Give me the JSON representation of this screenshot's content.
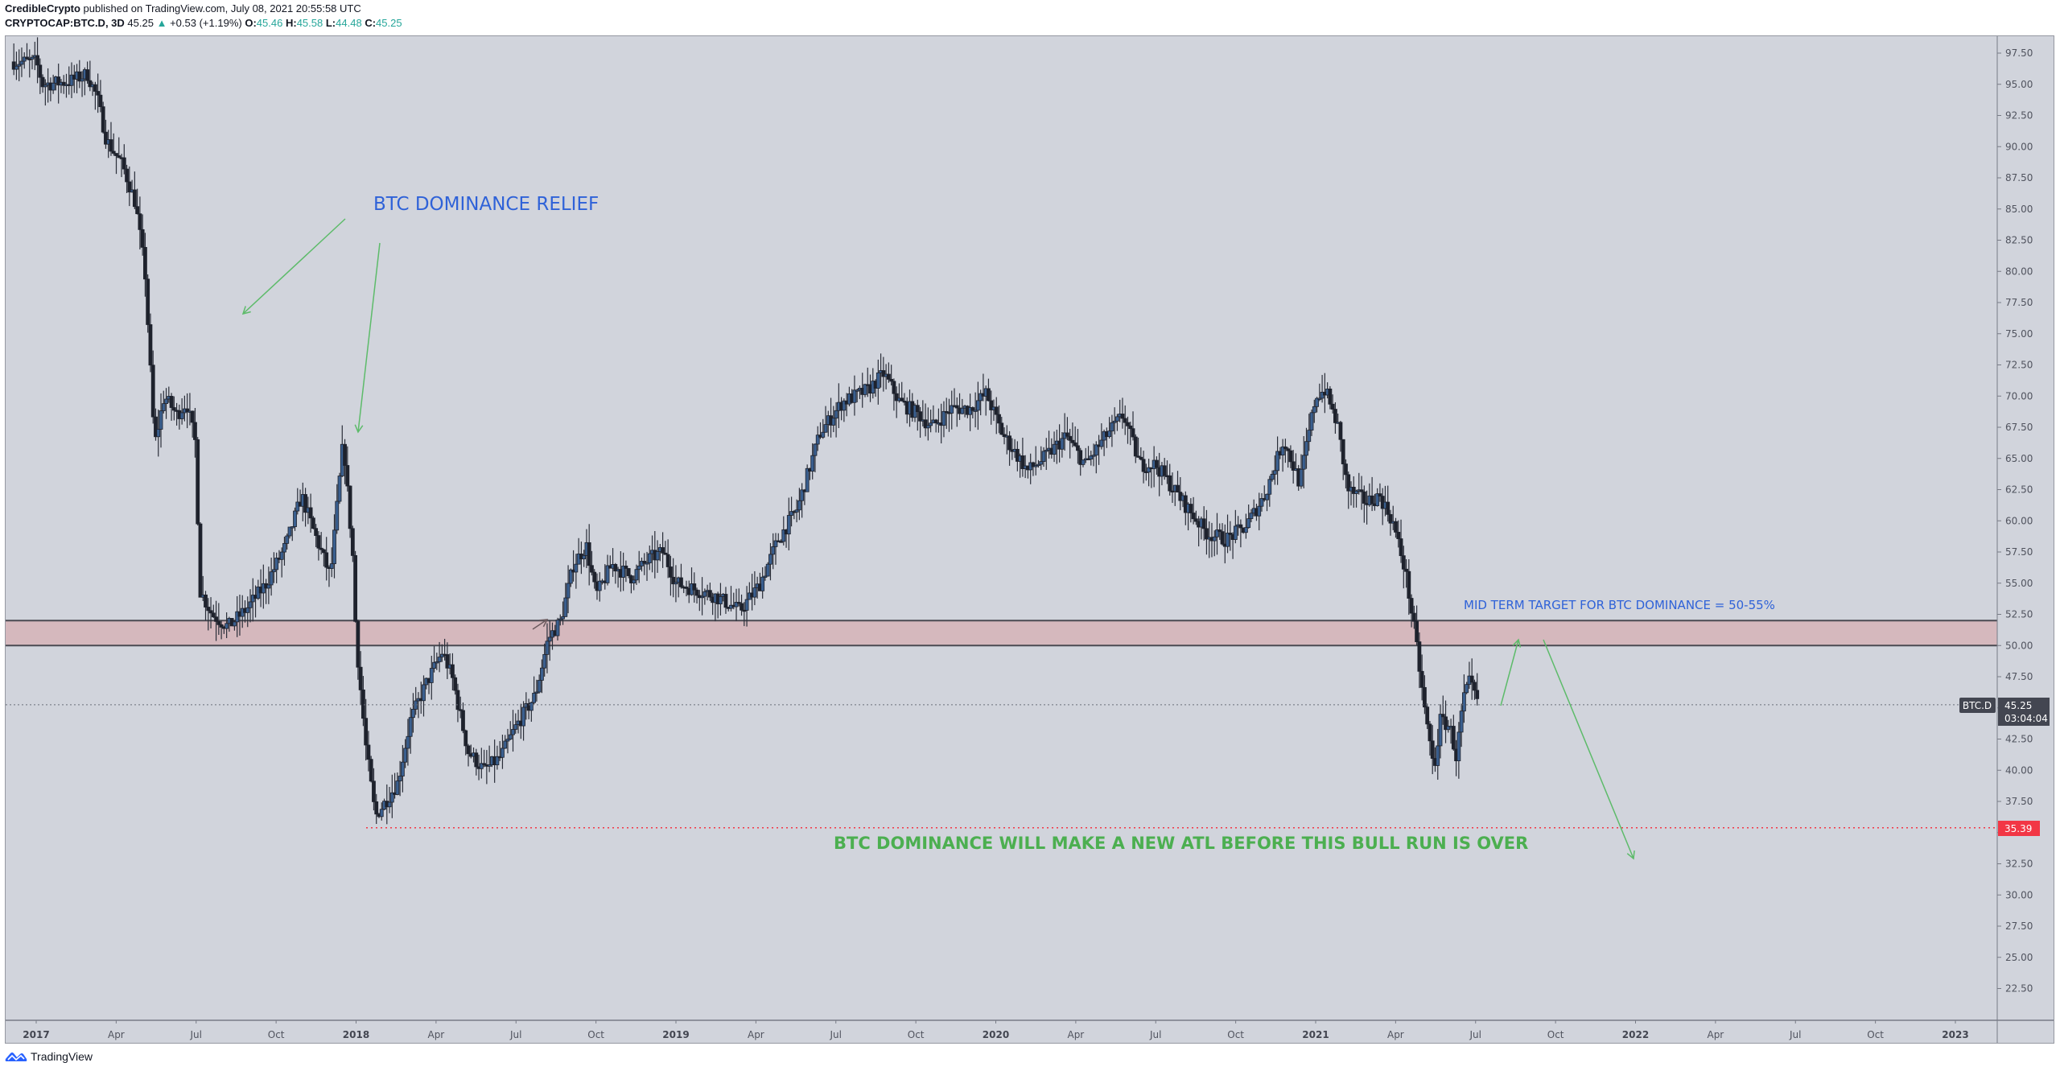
{
  "header": {
    "author": "CredibleCrypto",
    "published_text": "published on TradingView.com, July 08, 2021 20:55:58 UTC",
    "symbol": "CRYPTOCAP:BTC.D, 3D",
    "last": "45.25",
    "change": "+0.53 (+1.19%)",
    "ohlc": {
      "o_label": "O:",
      "o": "45.46",
      "h_label": "H:",
      "h": "45.58",
      "l_label": "L:",
      "l": "44.48",
      "c_label": "C:",
      "c": "45.25"
    }
  },
  "footer": {
    "brand": "TradingView"
  },
  "colors": {
    "background": "#d1d4dc",
    "candle_up": "#3a5f8f",
    "candle_down": "#1e222d",
    "zone_fill": "#d5b8bd",
    "annotation_blue": "#2f62d8",
    "annotation_green": "#4caf50",
    "atl_line": "#f23645"
  },
  "price_label": {
    "symbol_tag": "BTC.D",
    "price": "45.25",
    "countdown": "03:04:04"
  },
  "atl_label": {
    "price": "35.39"
  },
  "annotations": {
    "relief": "BTC DOMINANCE RELIEF",
    "mid_term": "MID TERM TARGET FOR BTC DOMINANCE = 50-55%",
    "atl": "BTC DOMINANCE WILL MAKE A NEW ATL BEFORE THIS BULL RUN IS OVER"
  },
  "chart_data": {
    "type": "candlestick",
    "title": "CRYPTOCAP:BTC.D, 3D",
    "xlabel": "",
    "ylabel": "",
    "ylim": [
      20.0,
      98.5
    ],
    "grid": false,
    "y_ticks": [
      "97.50",
      "95.00",
      "92.50",
      "90.00",
      "87.50",
      "85.00",
      "82.50",
      "80.00",
      "77.50",
      "75.00",
      "72.50",
      "70.00",
      "67.50",
      "65.00",
      "62.50",
      "60.00",
      "57.50",
      "55.00",
      "52.50",
      "50.00",
      "47.50",
      "45.00",
      "42.50",
      "40.00",
      "37.50",
      "35.00",
      "32.50",
      "30.00",
      "27.50",
      "25.00",
      "22.50"
    ],
    "x_ticks": [
      {
        "label": "2017",
        "year": true,
        "t": 2017.0
      },
      {
        "label": "Apr",
        "year": false,
        "t": 2017.25
      },
      {
        "label": "Jul",
        "year": false,
        "t": 2017.5
      },
      {
        "label": "Oct",
        "year": false,
        "t": 2017.75
      },
      {
        "label": "2018",
        "year": true,
        "t": 2018.0
      },
      {
        "label": "Apr",
        "year": false,
        "t": 2018.25
      },
      {
        "label": "Jul",
        "year": false,
        "t": 2018.5
      },
      {
        "label": "Oct",
        "year": false,
        "t": 2018.75
      },
      {
        "label": "2019",
        "year": true,
        "t": 2019.0
      },
      {
        "label": "Apr",
        "year": false,
        "t": 2019.25
      },
      {
        "label": "Jul",
        "year": false,
        "t": 2019.5
      },
      {
        "label": "Oct",
        "year": false,
        "t": 2019.75
      },
      {
        "label": "2020",
        "year": true,
        "t": 2020.0
      },
      {
        "label": "Apr",
        "year": false,
        "t": 2020.25
      },
      {
        "label": "Jul",
        "year": false,
        "t": 2020.5
      },
      {
        "label": "Oct",
        "year": false,
        "t": 2020.75
      },
      {
        "label": "2021",
        "year": true,
        "t": 2021.0
      },
      {
        "label": "Apr",
        "year": false,
        "t": 2021.25
      },
      {
        "label": "Jul",
        "year": false,
        "t": 2021.5
      },
      {
        "label": "Oct",
        "year": false,
        "t": 2021.75
      },
      {
        "label": "2022",
        "year": true,
        "t": 2022.0
      },
      {
        "label": "Apr",
        "year": false,
        "t": 2022.25
      },
      {
        "label": "Jul",
        "year": false,
        "t": 2022.5
      },
      {
        "label": "Oct",
        "year": false,
        "t": 2022.75
      },
      {
        "label": "2023",
        "year": true,
        "t": 2023.0
      }
    ],
    "close_keyframes": [
      [
        2016.93,
        96.8
      ],
      [
        2017.0,
        96.8
      ],
      [
        2017.02,
        95.0
      ],
      [
        2017.1,
        95.2
      ],
      [
        2017.16,
        95.8
      ],
      [
        2017.19,
        94.0
      ],
      [
        2017.22,
        90.5
      ],
      [
        2017.27,
        88.5
      ],
      [
        2017.31,
        85.5
      ],
      [
        2017.34,
        80.0
      ],
      [
        2017.37,
        66.0
      ],
      [
        2017.4,
        70.0
      ],
      [
        2017.44,
        68.5
      ],
      [
        2017.47,
        69.5
      ],
      [
        2017.5,
        66.0
      ],
      [
        2017.51,
        54.5
      ],
      [
        2017.55,
        52.5
      ],
      [
        2017.6,
        51.5
      ],
      [
        2017.66,
        53.0
      ],
      [
        2017.72,
        55.0
      ],
      [
        2017.78,
        58.0
      ],
      [
        2017.83,
        62.0
      ],
      [
        2017.87,
        59.0
      ],
      [
        2017.92,
        55.5
      ],
      [
        2017.96,
        66.5
      ],
      [
        2017.99,
        57.0
      ],
      [
        2018.0,
        50.5
      ],
      [
        2018.03,
        42.0
      ],
      [
        2018.06,
        36.3
      ],
      [
        2018.1,
        37.8
      ],
      [
        2018.13,
        39.0
      ],
      [
        2018.17,
        44.0
      ],
      [
        2018.22,
        47.0
      ],
      [
        2018.27,
        49.5
      ],
      [
        2018.3,
        47.5
      ],
      [
        2018.35,
        41.5
      ],
      [
        2018.4,
        40.0
      ],
      [
        2018.45,
        41.0
      ],
      [
        2018.5,
        43.5
      ],
      [
        2018.56,
        46.0
      ],
      [
        2018.6,
        50.5
      ],
      [
        2018.64,
        52.0
      ],
      [
        2018.68,
        56.5
      ],
      [
        2018.72,
        58.0
      ],
      [
        2018.75,
        54.0
      ],
      [
        2018.8,
        56.5
      ],
      [
        2018.86,
        55.5
      ],
      [
        2018.92,
        57.0
      ],
      [
        2018.96,
        57.5
      ],
      [
        2019.0,
        55.0
      ],
      [
        2019.06,
        54.5
      ],
      [
        2019.12,
        54.0
      ],
      [
        2019.2,
        52.8
      ],
      [
        2019.26,
        54.8
      ],
      [
        2019.32,
        58.5
      ],
      [
        2019.38,
        61.0
      ],
      [
        2019.45,
        67.0
      ],
      [
        2019.52,
        69.5
      ],
      [
        2019.6,
        70.5
      ],
      [
        2019.65,
        71.8
      ],
      [
        2019.7,
        69.5
      ],
      [
        2019.76,
        68.5
      ],
      [
        2019.8,
        67.5
      ],
      [
        2019.86,
        69.0
      ],
      [
        2019.92,
        69.0
      ],
      [
        2019.97,
        70.2
      ],
      [
        2020.02,
        67.0
      ],
      [
        2020.1,
        64.0
      ],
      [
        2020.15,
        65.0
      ],
      [
        2020.22,
        66.8
      ],
      [
        2020.28,
        64.5
      ],
      [
        2020.35,
        67.0
      ],
      [
        2020.4,
        68.5
      ],
      [
        2020.45,
        64.5
      ],
      [
        2020.5,
        64.5
      ],
      [
        2020.6,
        61.0
      ],
      [
        2020.66,
        59.0
      ],
      [
        2020.72,
        58.5
      ],
      [
        2020.78,
        59.5
      ],
      [
        2020.84,
        62.0
      ],
      [
        2020.9,
        66.5
      ],
      [
        2020.95,
        63.0
      ],
      [
        2021.0,
        70.0
      ],
      [
        2021.03,
        70.5
      ],
      [
        2021.07,
        67.5
      ],
      [
        2021.1,
        62.5
      ],
      [
        2021.16,
        61.5
      ],
      [
        2021.2,
        62.0
      ],
      [
        2021.24,
        60.0
      ],
      [
        2021.28,
        56.0
      ],
      [
        2021.31,
        51.0
      ],
      [
        2021.34,
        45.0
      ],
      [
        2021.37,
        40.0
      ],
      [
        2021.39,
        44.0
      ],
      [
        2021.42,
        43.5
      ],
      [
        2021.44,
        41.0
      ],
      [
        2021.46,
        45.5
      ],
      [
        2021.48,
        47.0
      ],
      [
        2021.51,
        45.25
      ]
    ],
    "support_zone": {
      "top": 52.0,
      "bottom": 50.0
    },
    "current_price": 45.25,
    "atl_level": 35.39,
    "drawings": [
      {
        "type": "arrow",
        "color": "#4caf50",
        "from": [
          2018.96,
          48.07
        ],
        "to": [
          2019.01,
          52.08
        ],
        "note": "dark small arrow at zone breakout"
      }
    ]
  }
}
